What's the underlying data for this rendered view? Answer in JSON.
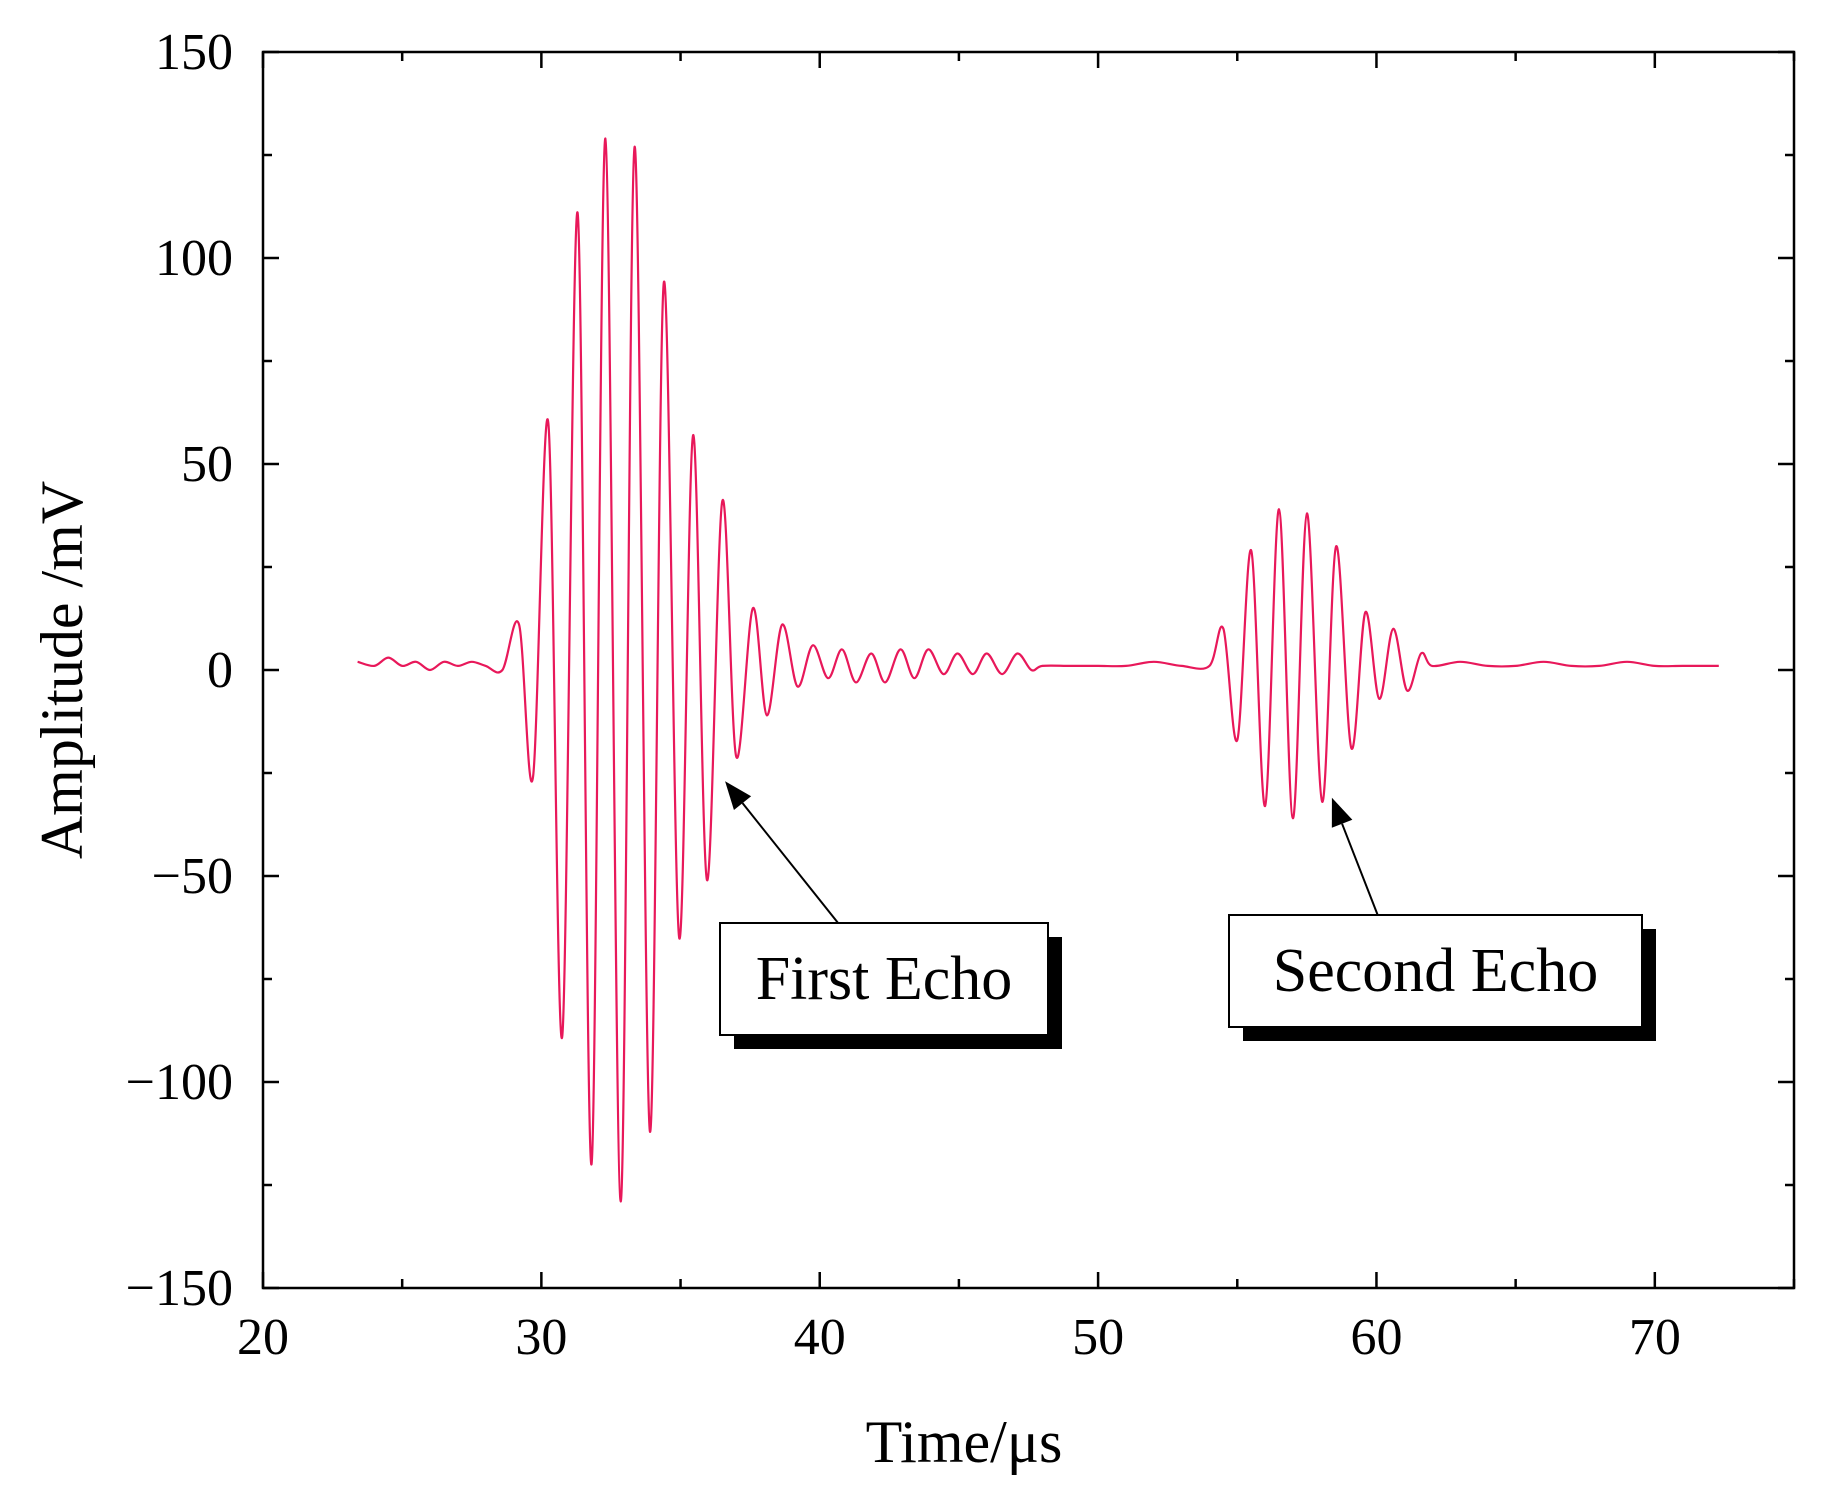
{
  "chart_data": {
    "type": "line",
    "title": "",
    "xlabel": "Time/μs",
    "ylabel": "Amplitude /mV",
    "xlim": [
      20,
      75
    ],
    "ylim": [
      -150,
      150
    ],
    "x_ticks": [
      20,
      30,
      40,
      50,
      60,
      70
    ],
    "x_tick_labels": [
      "20",
      "30",
      "40",
      "50",
      "60",
      "70"
    ],
    "y_ticks": [
      -150,
      -100,
      -50,
      0,
      50,
      100,
      150
    ],
    "y_tick_labels": [
      "−150",
      "−100",
      "−50",
      "0",
      "50",
      "100",
      "150"
    ],
    "grid": false,
    "series": [
      {
        "color": "#e8185a",
        "x": [
          23.4,
          24.0,
          24.5,
          25.0,
          25.5,
          26.0,
          26.5,
          27.0,
          27.5,
          28.0,
          28.6,
          29.2,
          29.7,
          30.25,
          30.75,
          31.3,
          31.8,
          32.3,
          32.85,
          33.35,
          33.9,
          34.4,
          34.95,
          35.45,
          35.95,
          36.5,
          37.0,
          37.6,
          38.1,
          38.65,
          39.2,
          39.75,
          40.3,
          40.8,
          41.3,
          41.85,
          42.35,
          42.9,
          43.4,
          43.9,
          44.45,
          44.95,
          45.5,
          46.0,
          46.55,
          47.1,
          47.6,
          48.0,
          49.0,
          50.0,
          51.0,
          52.0,
          53.0,
          54.0,
          54.5,
          55.0,
          55.5,
          56.0,
          56.5,
          57.0,
          57.5,
          58.05,
          58.55,
          59.1,
          59.6,
          60.1,
          60.6,
          61.1,
          61.6,
          62.0,
          63.0,
          64.0,
          65.0,
          66.0,
          67.0,
          68.0,
          69.0,
          70.0,
          71.0,
          72.3
        ],
        "y": [
          2,
          1,
          3,
          1,
          2,
          0,
          2,
          1,
          2,
          1,
          0,
          11,
          -26,
          60,
          -89,
          111,
          -120,
          129,
          -129,
          127,
          -112,
          94,
          -65,
          57,
          -51,
          41,
          -21,
          15,
          -11,
          11,
          -4,
          6,
          -2,
          5,
          -3,
          4,
          -3,
          5,
          -2,
          5,
          -1,
          4,
          -1,
          4,
          -1,
          4,
          0,
          1,
          1,
          1,
          1,
          2,
          1,
          1,
          10,
          -17,
          29,
          -33,
          39,
          -36,
          38,
          -32,
          30,
          -19,
          14,
          -7,
          10,
          -5,
          4,
          1,
          2,
          1,
          1,
          2,
          1,
          1,
          2,
          1,
          1,
          1
        ]
      }
    ],
    "annotations": [
      {
        "text": "First Echo",
        "target": [
          36.6,
          -27
        ]
      },
      {
        "text": "Second Echo",
        "target": [
          58.4,
          -31
        ]
      }
    ]
  }
}
